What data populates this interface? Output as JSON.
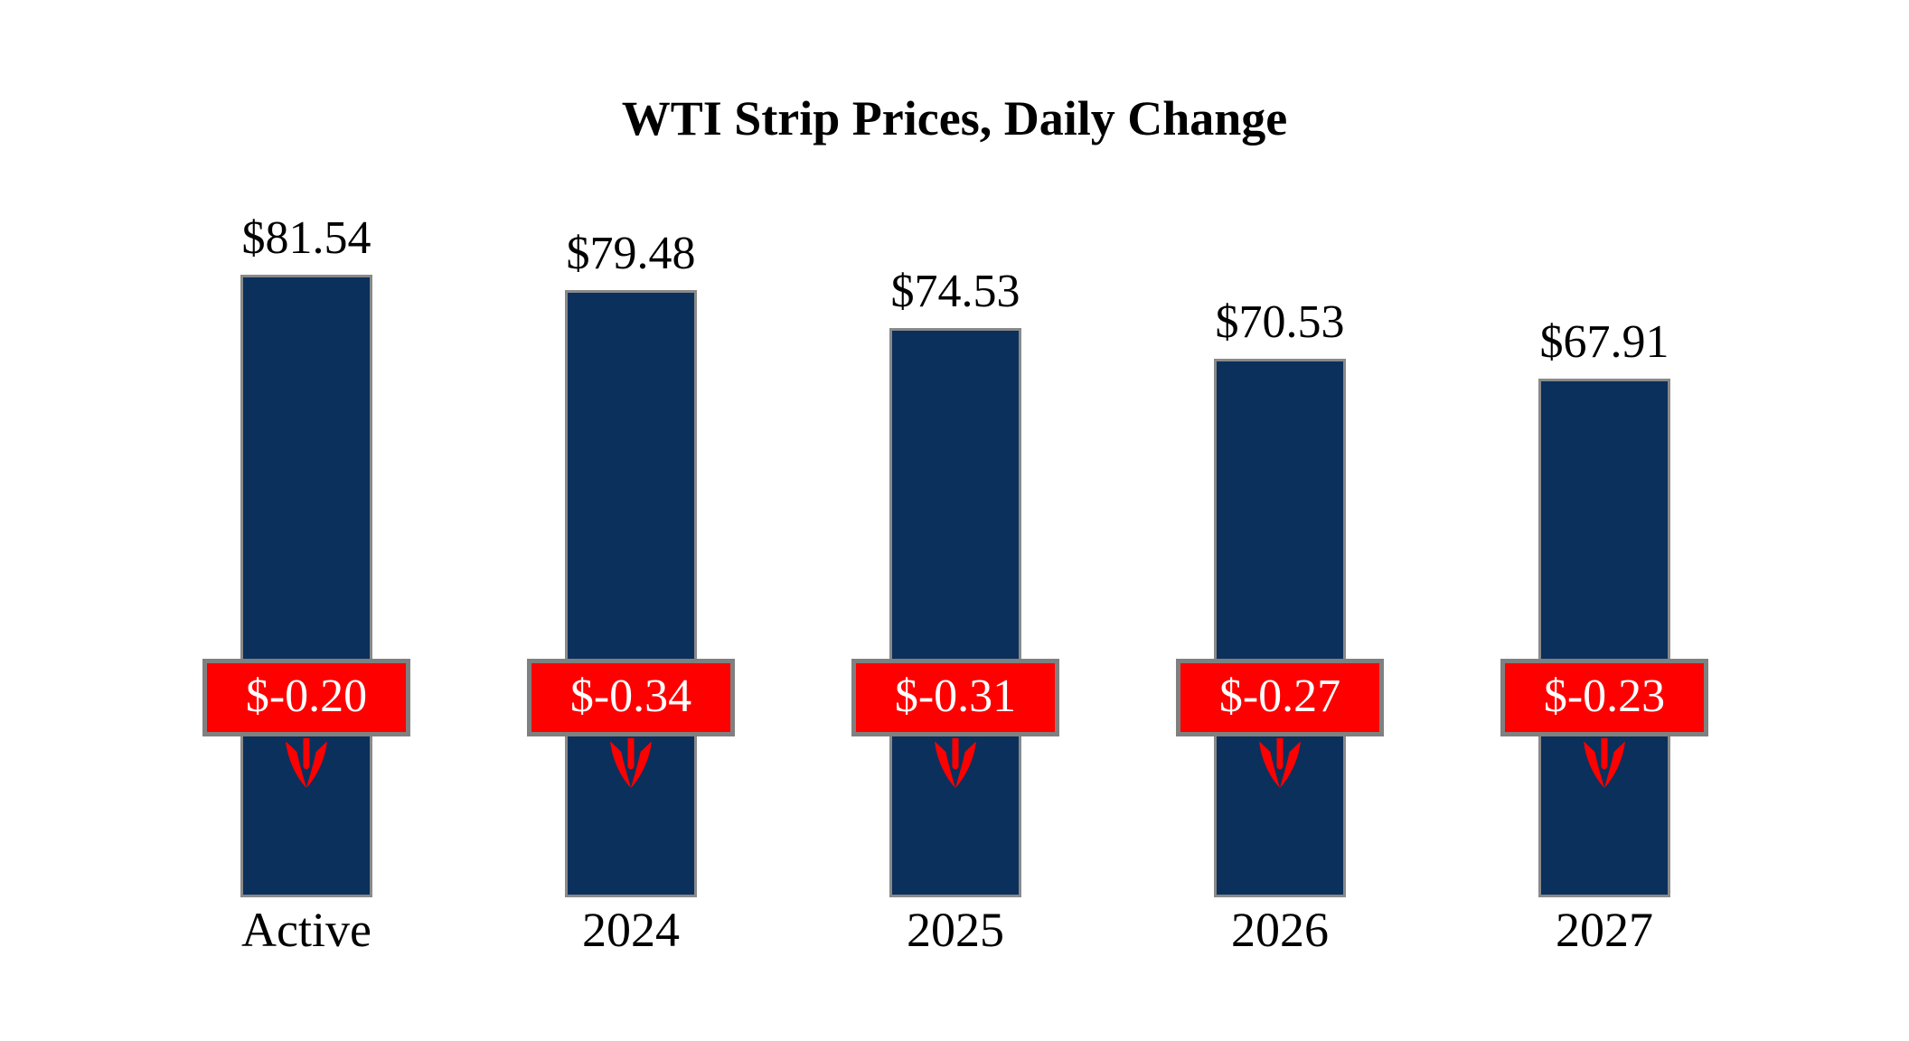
{
  "page": {
    "background": "#FFFFFF"
  },
  "chart_data": {
    "type": "bar",
    "title": "WTI Strip Prices, Daily Change",
    "categories": [
      "Active",
      "2024",
      "2025",
      "2026",
      "2027"
    ],
    "series": [
      {
        "name": "Strip Price",
        "values": [
          81.54,
          79.48,
          74.53,
          70.53,
          67.91
        ],
        "labels": [
          "$81.54",
          "$79.48",
          "$74.53",
          "$70.53",
          "$67.91"
        ]
      },
      {
        "name": "Daily Change",
        "values": [
          -0.2,
          -0.34,
          -0.31,
          -0.27,
          -0.23
        ],
        "labels": [
          "$-0.20",
          "$-0.34",
          "$-0.31",
          "$-0.27",
          "$-0.23"
        ]
      }
    ],
    "ylim": [
      0,
      85
    ],
    "baseline": 0,
    "grid": "off",
    "legend": "none",
    "axes_visible": false,
    "colors": {
      "bar_fill": "#0B305C",
      "bar_border": "#8A8A8A",
      "badge_fill": "#FE0000",
      "badge_border": "#808080",
      "badge_text": "#FFFFFF",
      "label_text": "#000000",
      "arrow": "#FE0000"
    }
  }
}
